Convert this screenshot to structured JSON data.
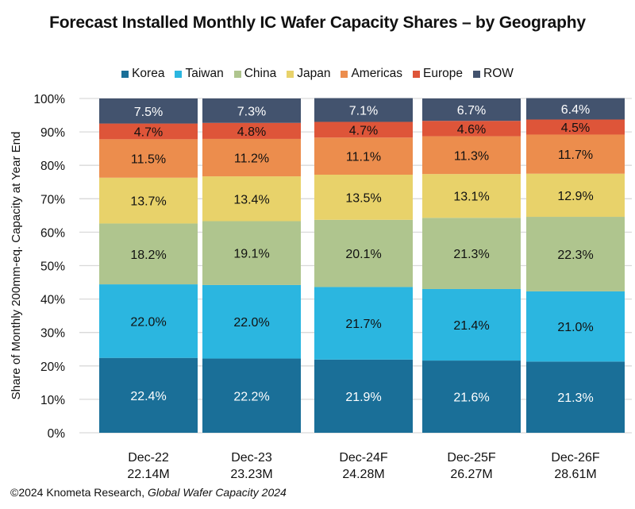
{
  "chart_data": {
    "type": "bar",
    "stacked": true,
    "title": "Forecast Installed Monthly IC Wafer Capacity Shares – by Geography",
    "xlabel": "",
    "ylabel": "Share of Monthly 200mm-eq. Capacity at Year End",
    "ylim": [
      0,
      100
    ],
    "yticks": [
      "0%",
      "10%",
      "20%",
      "30%",
      "40%",
      "50%",
      "60%",
      "70%",
      "80%",
      "90%",
      "100%"
    ],
    "grid": true,
    "legend_position": "top",
    "categories": [
      "Dec-22",
      "Dec-23",
      "Dec-24F",
      "Dec-25F",
      "Dec-26F"
    ],
    "category_totals": [
      "22.14M",
      "23.23M",
      "24.28M",
      "26.27M",
      "28.61M"
    ],
    "series": [
      {
        "name": "Korea",
        "color": "#1a6f98",
        "label_color": "#ffffff",
        "values": [
          22.4,
          22.2,
          21.9,
          21.6,
          21.3
        ]
      },
      {
        "name": "Taiwan",
        "color": "#2bb6e0",
        "label_color": "#111111",
        "values": [
          22.0,
          22.0,
          21.7,
          21.4,
          21.0
        ]
      },
      {
        "name": "China",
        "color": "#afc58e",
        "label_color": "#111111",
        "values": [
          18.2,
          19.1,
          20.1,
          21.3,
          22.3
        ]
      },
      {
        "name": "Japan",
        "color": "#e8d26a",
        "label_color": "#111111",
        "values": [
          13.7,
          13.4,
          13.5,
          13.1,
          12.9
        ]
      },
      {
        "name": "Americas",
        "color": "#ec8d4d",
        "label_color": "#111111",
        "values": [
          11.5,
          11.2,
          11.1,
          11.3,
          11.7
        ]
      },
      {
        "name": "Europe",
        "color": "#de5539",
        "label_color": "#111111",
        "values": [
          4.7,
          4.8,
          4.7,
          4.6,
          4.5
        ]
      },
      {
        "name": "ROW",
        "color": "#43536e",
        "label_color": "#ffffff",
        "values": [
          7.5,
          7.3,
          7.1,
          6.7,
          6.4
        ]
      }
    ]
  },
  "footer": {
    "prefix": "©2024 Knometa Research, ",
    "italic": "Global Wafer Capacity 2024"
  }
}
